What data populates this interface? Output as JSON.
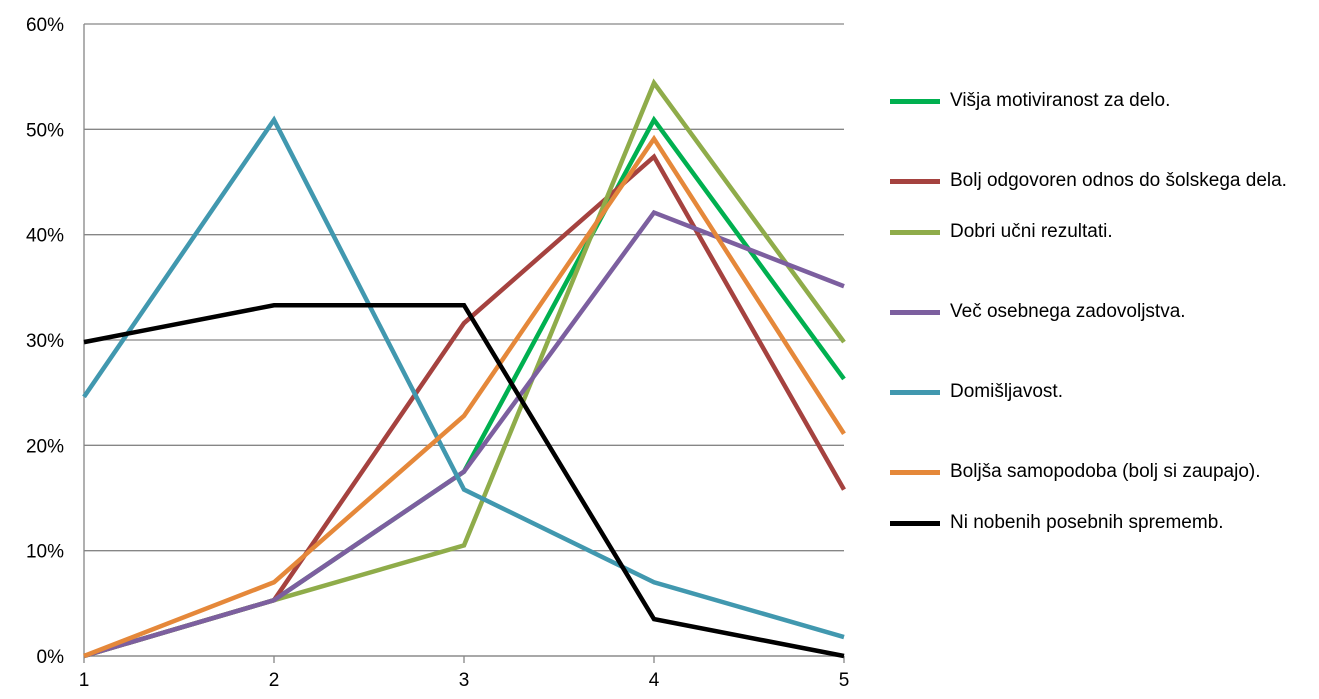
{
  "chart_data": {
    "type": "line",
    "title": "",
    "xlabel": "",
    "ylabel": "",
    "x": [
      1,
      2,
      3,
      4,
      5
    ],
    "ylim": [
      0,
      0.6
    ],
    "yticks": [
      "0%",
      "10%",
      "20%",
      "30%",
      "40%",
      "50%",
      "60%"
    ],
    "xticks": [
      "1",
      "2",
      "3",
      "4",
      "5"
    ],
    "grid": "horizontal",
    "legend_position": "right",
    "series": [
      {
        "name": "Višja motiviranost za delo.",
        "color": "#00b050",
        "values": [
          0.0,
          0.053,
          0.175,
          0.509,
          0.263
        ]
      },
      {
        "name": "Bolj odgovoren odnos do šolskega dela.",
        "color": "#a5423f",
        "values": [
          0.0,
          0.053,
          0.316,
          0.474,
          0.158
        ]
      },
      {
        "name": "Dobri učni rezultati.",
        "color": "#8fac4a",
        "values": [
          0.0,
          0.053,
          0.105,
          0.544,
          0.298
        ]
      },
      {
        "name": "Več osebnega zadovoljstva.",
        "color": "#7c5f9f",
        "values": [
          0.0,
          0.053,
          0.175,
          0.421,
          0.351
        ]
      },
      {
        "name": "Domišljavost.",
        "color": "#4198af",
        "values": [
          0.246,
          0.509,
          0.158,
          0.07,
          0.018
        ]
      },
      {
        "name": "Boljša samopodoba (bolj si zaupajo).",
        "color": "#e5883a",
        "values": [
          0.0,
          0.07,
          0.228,
          0.491,
          0.211
        ]
      },
      {
        "name": "Ni nobenih posebnih sprememb.",
        "color": "#000000",
        "values": [
          0.298,
          0.333,
          0.333,
          0.035,
          0.0
        ]
      }
    ]
  }
}
